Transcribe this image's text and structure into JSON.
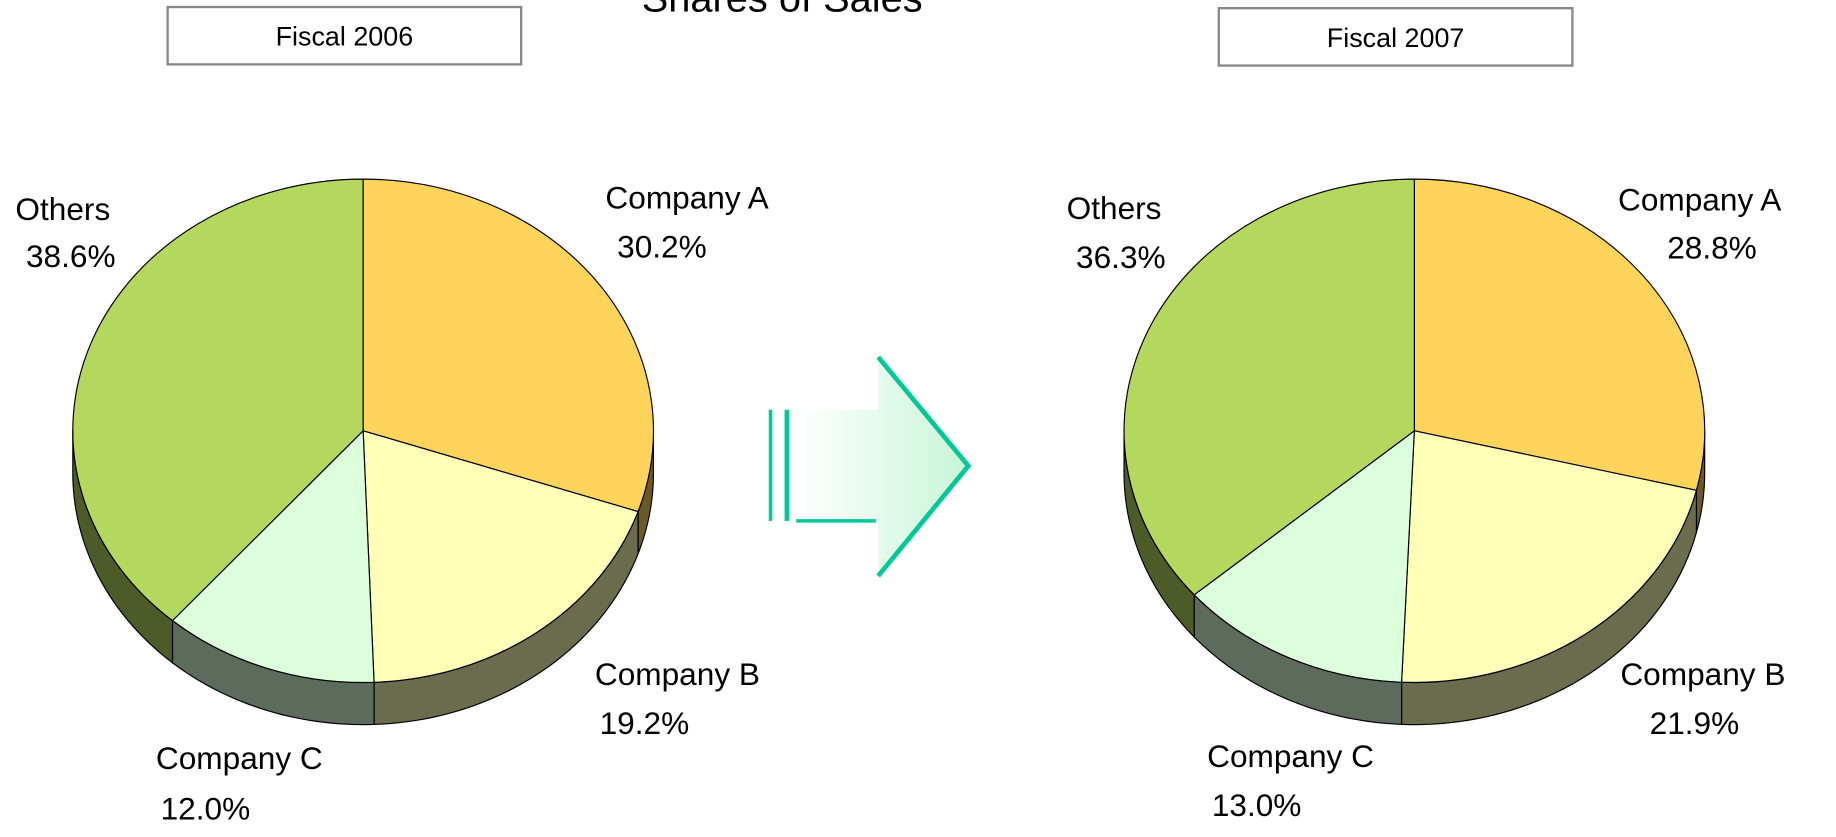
{
  "title": "Shares of Sales",
  "chart_data": [
    {
      "type": "pie",
      "subtitle": "Fiscal 2006",
      "categories": [
        "Company A",
        "Company B",
        "Company C",
        "Others"
      ],
      "values": [
        30.2,
        19.2,
        12.0,
        38.6
      ],
      "value_labels": [
        "30.2%",
        "19.2%",
        "12.0%",
        "38.6%"
      ],
      "colors": [
        "#ffd45a",
        "#ffffb8",
        "#dcffdc",
        "#b4d85e"
      ]
    },
    {
      "type": "pie",
      "subtitle": "Fiscal 2007",
      "categories": [
        "Company A",
        "Company B",
        "Company C",
        "Others"
      ],
      "values": [
        28.8,
        21.9,
        13.0,
        36.3
      ],
      "value_labels": [
        "28.8%",
        "21.9%",
        "13.0%",
        "36.3%"
      ],
      "colors": [
        "#ffd45a",
        "#ffffb8",
        "#dcffdc",
        "#b4d85e"
      ]
    }
  ]
}
